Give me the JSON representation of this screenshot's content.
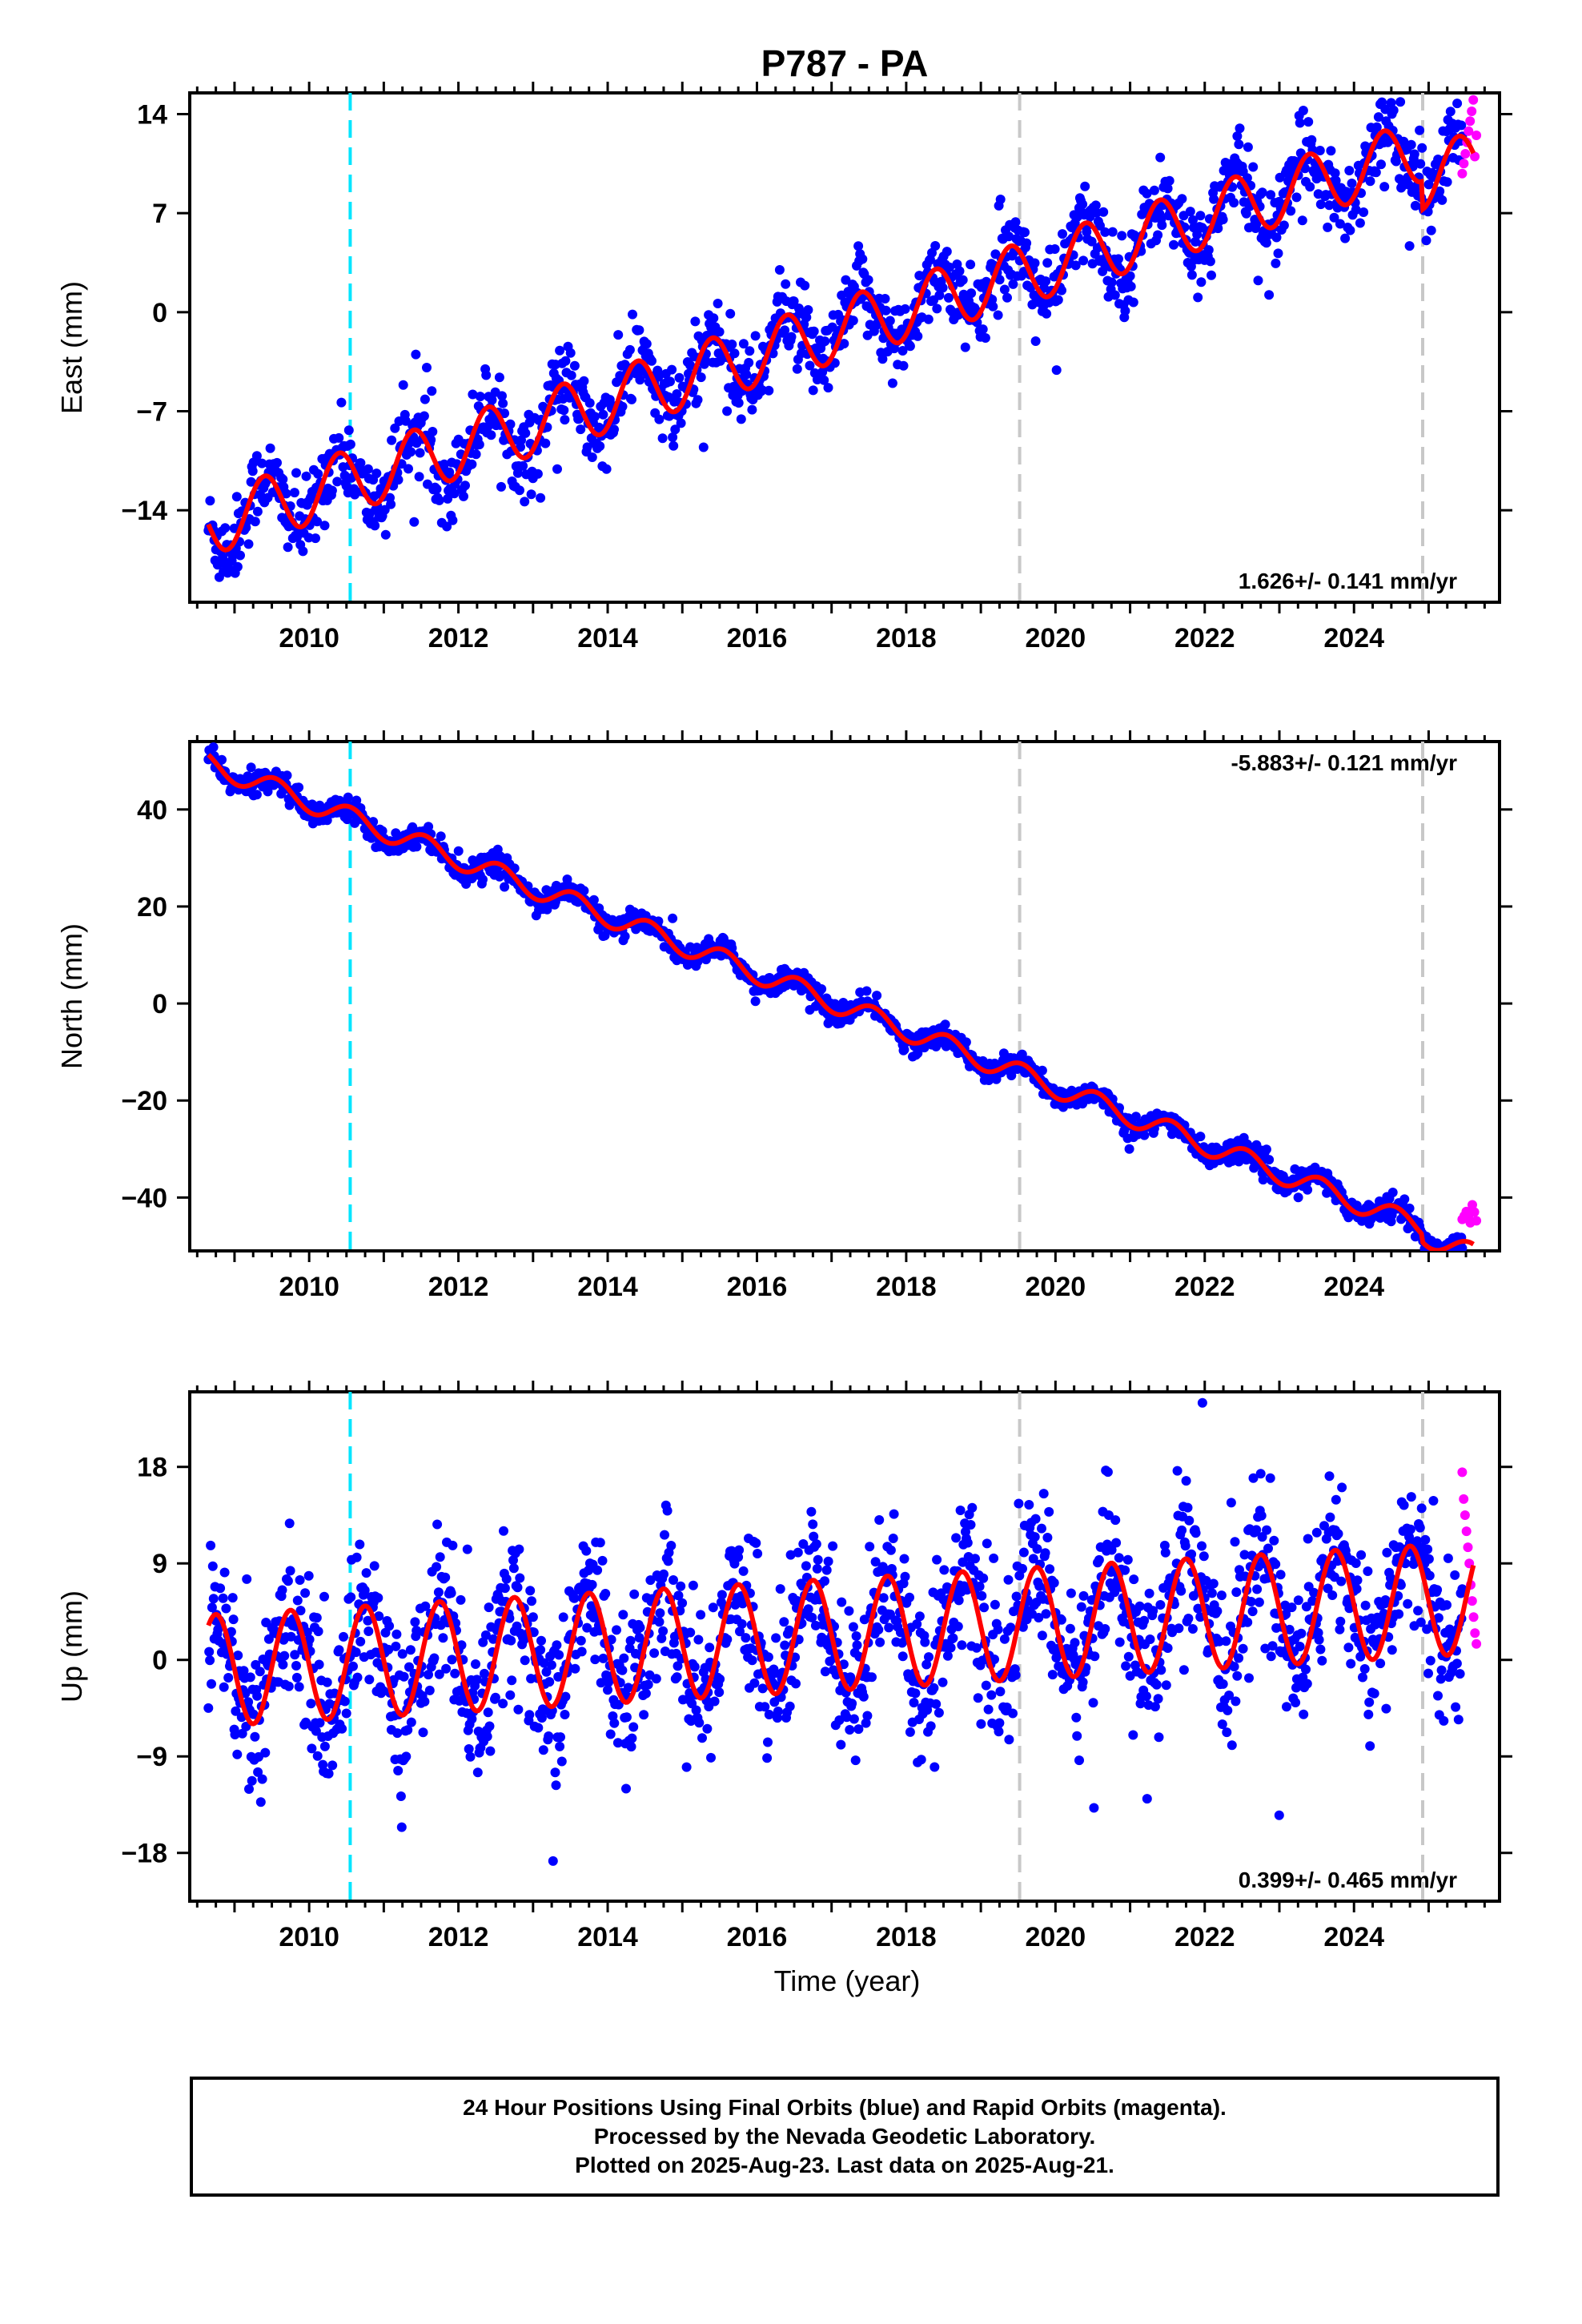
{
  "title": "P787 - PA",
  "xlabel": "Time (year)",
  "footer": {
    "line1": "24 Hour Positions Using Final Orbits (blue) and Rapid Orbits (magenta).",
    "line2": "Processed by the Nevada Geodetic Laboratory.",
    "line3": "Plotted on 2025-Aug-23. Last data on 2025-Aug-21."
  },
  "colors": {
    "final_orbits": "#0000ff",
    "rapid_orbits": "#ff00ff",
    "model_fit": "#ff0000",
    "equipment_change": "#00e5ff",
    "other_event": "#c8c8c8"
  },
  "chart_data": [
    {
      "type": "scatter",
      "component": "east",
      "ylabel": "East (mm)",
      "xlim": [
        2008.4,
        2025.95
      ],
      "ylim": [
        -20.5,
        15.5
      ],
      "xticks": [
        2010,
        2012,
        2014,
        2016,
        2018,
        2020,
        2022,
        2024
      ],
      "yticks": [
        -14,
        -7,
        0,
        7,
        14
      ],
      "rate": "1.626+/- 0.141 mm/yr",
      "rate_position": "bottom-right",
      "vlines": [
        {
          "x": 2010.55,
          "kind": "equipment_change"
        },
        {
          "x": 2019.52,
          "kind": "other_event"
        },
        {
          "x": 2024.92,
          "kind": "other_event"
        }
      ],
      "model": {
        "start": 2008.65,
        "end": 2025.6,
        "intercept_at_start": -15.0,
        "rate_mm_yr": 1.626,
        "annual_amplitude": 2.2,
        "annual_peak": 0.4,
        "offsets": [
          {
            "x": 2019.52,
            "dy": 0.0
          },
          {
            "x": 2024.92,
            "dy": -2.0
          }
        ]
      },
      "scatter": {
        "start": 2008.65,
        "end": 2025.45,
        "noise_mm": 1.4,
        "count": 1500
      },
      "rapid": {
        "start": 2025.45,
        "end": 2025.64,
        "values": [
          9.8,
          10.5,
          11.2,
          12.0,
          12.8,
          13.5,
          14.2,
          15.0,
          11.0,
          12.5
        ]
      }
    },
    {
      "type": "scatter",
      "component": "north",
      "ylabel": "North (mm)",
      "xlim": [
        2008.4,
        2025.95
      ],
      "ylim": [
        -51,
        54
      ],
      "xticks": [
        2010,
        2012,
        2014,
        2016,
        2018,
        2020,
        2022,
        2024
      ],
      "yticks": [
        -40,
        -20,
        0,
        20,
        40
      ],
      "rate": "-5.883+/- 0.121 mm/yr",
      "rate_position": "top-right",
      "vlines": [
        {
          "x": 2010.55,
          "kind": "equipment_change"
        },
        {
          "x": 2019.52,
          "kind": "other_event"
        },
        {
          "x": 2024.92,
          "kind": "other_event"
        }
      ],
      "model": {
        "start": 2008.65,
        "end": 2025.6,
        "intercept_at_start": 49.5,
        "rate_mm_yr": -5.883,
        "annual_amplitude": 2.2,
        "annual_peak": 0.55,
        "offsets": [
          {
            "x": 2024.92,
            "dy": -1.5
          }
        ]
      },
      "scatter": {
        "start": 2008.65,
        "end": 2025.45,
        "noise_mm": 1.1,
        "count": 1500
      },
      "rapid": {
        "start": 2025.45,
        "end": 2025.64,
        "values": [
          -44.5,
          -43.8,
          -42.9,
          -44.0,
          -45.2,
          -41.5,
          -43.0,
          -44.8
        ]
      }
    },
    {
      "type": "scatter",
      "component": "up",
      "ylabel": "Up (mm)",
      "xlim": [
        2008.4,
        2025.95
      ],
      "ylim": [
        -22.5,
        25
      ],
      "xticks": [
        2010,
        2012,
        2014,
        2016,
        2018,
        2020,
        2022,
        2024
      ],
      "yticks": [
        -18,
        -9,
        0,
        9,
        18
      ],
      "rate": "0.399+/- 0.465 mm/yr",
      "rate_position": "bottom-right",
      "vlines": [
        {
          "x": 2010.55,
          "kind": "equipment_change"
        },
        {
          "x": 2019.52,
          "kind": "other_event"
        },
        {
          "x": 2024.92,
          "kind": "other_event"
        }
      ],
      "model": {
        "start": 2008.65,
        "end": 2025.6,
        "intercept_at_start": -1.0,
        "rate_mm_yr": 0.399,
        "annual_amplitude": 5.2,
        "annual_peak": 0.75,
        "offsets": []
      },
      "scatter": {
        "start": 2008.65,
        "end": 2025.45,
        "noise_mm": 3.4,
        "count": 1700
      },
      "rapid": {
        "start": 2025.45,
        "end": 2025.64,
        "values": [
          17.5,
          15.0,
          13.5,
          12.0,
          10.5,
          9.0,
          7.0,
          5.5,
          4.0,
          2.5,
          1.5
        ]
      }
    }
  ]
}
